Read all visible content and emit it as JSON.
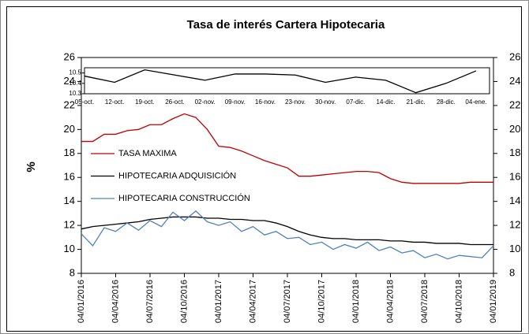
{
  "chart_data": [
    {
      "type": "line",
      "title": "Tasa de interés Cartera Hipotecaria",
      "y_label": "%",
      "categories": [
        "04/01/2016",
        null,
        null,
        "04/04/2016",
        null,
        null,
        "04/07/2016",
        null,
        null,
        "04/10/2016",
        null,
        null,
        "04/01/2017",
        null,
        null,
        "04/04/2017",
        null,
        null,
        "04/07/2017",
        null,
        null,
        "04/10/2017",
        null,
        null,
        "04/01/2018",
        null,
        null,
        "04/04/2018",
        null,
        null,
        "04/07/2018",
        null,
        null,
        "04/10/2018",
        null,
        null,
        "04/01/2019"
      ],
      "series": [
        {
          "name": "TASA MAXIMA",
          "color": "#c00000",
          "values": [
            19.0,
            19.0,
            19.6,
            19.6,
            19.9,
            20.0,
            20.4,
            20.4,
            20.9,
            21.3,
            21.0,
            20.0,
            18.6,
            18.5,
            18.2,
            17.8,
            17.4,
            17.1,
            16.8,
            16.1,
            16.1,
            16.2,
            16.3,
            16.4,
            16.5,
            16.5,
            16.4,
            15.9,
            15.6,
            15.5,
            15.5,
            15.5,
            15.5,
            15.5,
            15.6,
            15.6,
            15.6
          ]
        },
        {
          "name": "HIPOTECARIA ADQUISICIÓN",
          "color": "#000000",
          "values": [
            11.7,
            11.9,
            12.0,
            12.1,
            12.2,
            12.3,
            12.5,
            12.6,
            12.7,
            12.7,
            12.7,
            12.6,
            12.6,
            12.5,
            12.5,
            12.4,
            12.4,
            12.2,
            11.9,
            11.5,
            11.2,
            11.0,
            10.9,
            10.9,
            10.8,
            10.8,
            10.8,
            10.7,
            10.7,
            10.6,
            10.6,
            10.5,
            10.5,
            10.5,
            10.4,
            10.4,
            10.4
          ]
        },
        {
          "name": "HIPOTECARIA CONSTRUCCIÓN",
          "color": "#4f81bd",
          "values": [
            11.3,
            10.3,
            11.8,
            11.5,
            12.2,
            11.6,
            12.4,
            11.9,
            13.1,
            12.4,
            13.2,
            12.3,
            12.0,
            12.3,
            11.5,
            11.9,
            11.2,
            11.5,
            10.9,
            11.0,
            10.4,
            10.6,
            10.0,
            10.4,
            10.1,
            10.6,
            9.9,
            10.2,
            9.7,
            9.9,
            9.3,
            9.6,
            9.2,
            9.5,
            9.4,
            9.3,
            10.3
          ]
        }
      ],
      "ylim": [
        8,
        26
      ],
      "yticks": [
        8,
        10,
        12,
        14,
        16,
        18,
        20,
        22,
        24,
        26
      ],
      "y2lim": [
        8,
        26
      ],
      "y2ticks": [
        8,
        10,
        12,
        14,
        16,
        18,
        20,
        22,
        24,
        26
      ]
    },
    {
      "type": "line",
      "categories": [
        "05-oct.",
        "12-oct.",
        "19-oct.",
        "26-oct.",
        "02-nov.",
        "09-nov.",
        "16-nov.",
        "23-nov.",
        "30-nov.",
        "07-dic.",
        "14-dic.",
        "21-dic.",
        "28-dic.",
        "04-ene."
      ],
      "series": [
        {
          "color": "#000000",
          "values": [
            10.47,
            10.41,
            10.53,
            10.48,
            10.43,
            10.49,
            10.49,
            10.48,
            10.41,
            10.46,
            10.43,
            10.31,
            10.4,
            10.52
          ]
        }
      ],
      "ylim": [
        10.3,
        10.55
      ],
      "yticks": [
        10.3,
        10.4,
        10.5
      ]
    }
  ]
}
